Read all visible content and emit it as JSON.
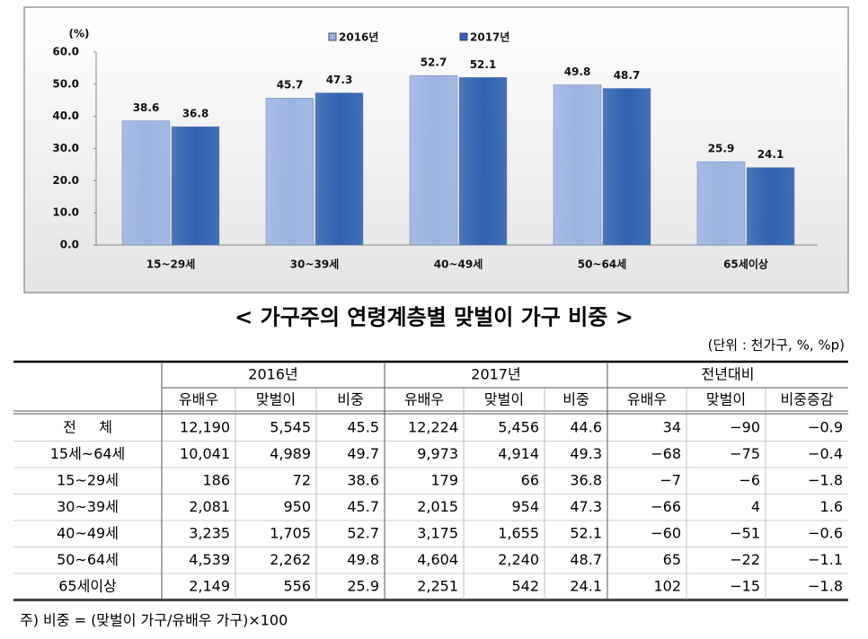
{
  "chart_data": {
    "type": "bar",
    "y_label": "(%)",
    "categories": [
      "15~29세",
      "30~39세",
      "40~49세",
      "50~64세",
      "65세이상"
    ],
    "series": [
      {
        "name": "2016년",
        "color": "#9bb3e0",
        "values": [
          38.6,
          45.7,
          52.7,
          49.8,
          25.9
        ]
      },
      {
        "name": "2017년",
        "color": "#2f61b0",
        "values": [
          36.8,
          47.3,
          52.1,
          48.7,
          24.1
        ]
      }
    ],
    "ylim": [
      0,
      60
    ],
    "yticks": [
      {
        "value": 0,
        "label": "0.0"
      },
      {
        "value": 10,
        "label": "10.0"
      },
      {
        "value": 20,
        "label": "20.0"
      },
      {
        "value": 30,
        "label": "30.0"
      },
      {
        "value": 40,
        "label": "40.0"
      },
      {
        "value": 50,
        "label": "50.0"
      },
      {
        "value": 60,
        "label": "60.0"
      }
    ],
    "legend": "top"
  },
  "title": "< 가구주의 연령계층별 맞벌이 가구 비중 >",
  "unit": "(단위 : 천가구, %, %p)",
  "table": {
    "groups": [
      "2016년",
      "2017년",
      "전년대비"
    ],
    "subheaders": [
      "유배우",
      "맞벌이",
      "비중",
      "유배우",
      "맞벌이",
      "비중",
      "유배우",
      "맞벌이",
      "비중증감"
    ],
    "rows": [
      [
        "전     체",
        "12,190",
        "5,545",
        "45.5",
        "12,224",
        "5,456",
        "44.6",
        "34",
        "−90",
        "−0.9"
      ],
      [
        "15세~64세",
        "10,041",
        "4,989",
        "49.7",
        "9,973",
        "4,914",
        "49.3",
        "−68",
        "−75",
        "−0.4"
      ],
      [
        "15~29세",
        "186",
        "72",
        "38.6",
        "179",
        "66",
        "36.8",
        "−7",
        "−6",
        "−1.8"
      ],
      [
        "30~39세",
        "2,081",
        "950",
        "45.7",
        "2,015",
        "954",
        "47.3",
        "−66",
        "4",
        "1.6"
      ],
      [
        "40~49세",
        "3,235",
        "1,705",
        "52.7",
        "3,175",
        "1,655",
        "52.1",
        "−60",
        "−51",
        "−0.6"
      ],
      [
        "50~64세",
        "4,539",
        "2,262",
        "49.8",
        "4,604",
        "2,240",
        "48.7",
        "65",
        "−22",
        "−1.1"
      ],
      [
        "65세이상",
        "2,149",
        "556",
        "25.9",
        "2,251",
        "542",
        "24.1",
        "102",
        "−15",
        "−1.8"
      ]
    ]
  },
  "note": "주) 비중 = (맞벌이 가구/유배우 가구)×100"
}
